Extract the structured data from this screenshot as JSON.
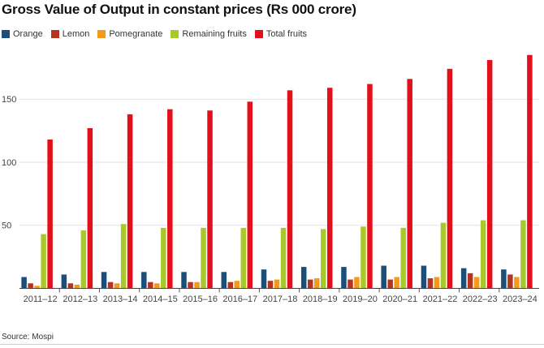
{
  "chart_data": {
    "type": "bar",
    "title": "Gross Value of Output in constant prices (Rs 000 crore)",
    "categories": [
      "2011-12",
      "2012-13",
      "2013-14",
      "2014-15",
      "2015-16",
      "2016-17",
      "2017-18",
      "2018-19",
      "2019-20",
      "2020-21",
      "2021-22",
      "2022-23",
      "2023-24"
    ],
    "series": [
      {
        "name": "Orange",
        "color": "#1b4f7a",
        "values": [
          9,
          11,
          13,
          13,
          13,
          13,
          15,
          17,
          17,
          18,
          18,
          16,
          15
        ]
      },
      {
        "name": "Lemon",
        "color": "#b5341f",
        "values": [
          4,
          4,
          5,
          5,
          5,
          5,
          6,
          7,
          7,
          7,
          8,
          12,
          11
        ]
      },
      {
        "name": "Pomegranate",
        "color": "#f39a1c",
        "values": [
          2,
          3,
          4,
          4,
          5,
          6,
          7,
          8,
          9,
          9,
          9,
          9,
          9
        ]
      },
      {
        "name": "Remaining fruits",
        "color": "#a8c92c",
        "values": [
          43,
          46,
          51,
          48,
          48,
          48,
          48,
          47,
          49,
          48,
          52,
          54,
          54
        ]
      },
      {
        "name": "Total fruits",
        "color": "#e3101b",
        "values": [
          118,
          127,
          138,
          142,
          141,
          148,
          157,
          159,
          162,
          166,
          174,
          181,
          185
        ]
      }
    ],
    "yticks": [
      50,
      100,
      150
    ],
    "ylim": [
      0,
      190
    ],
    "grid": true,
    "legend_position": "top-left"
  },
  "source": "Source: Mospi"
}
